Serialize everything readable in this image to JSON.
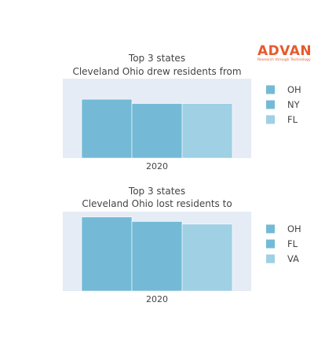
{
  "brand": {
    "name": "ADVAN",
    "tagline": "Research through Technology",
    "color": "#e65a2e"
  },
  "colors": {
    "plot_background": "#e5ecf6",
    "text": "#444444"
  },
  "chart_data": [
    {
      "type": "bar",
      "title_lines": [
        "Top 3 states",
        "Cleveland Ohio drew residents from"
      ],
      "categories": [
        "2020"
      ],
      "series": [
        {
          "name": "OH",
          "values": [
            41.5
          ],
          "color": "#74bad6"
        },
        {
          "name": "NY",
          "values": [
            38.5
          ],
          "color": "#74bad6"
        },
        {
          "name": "FL",
          "values": [
            38.5
          ],
          "color": "#9fd0e4"
        }
      ],
      "ylim": [
        0,
        56
      ],
      "legend_position": "right",
      "ylabel": "",
      "xlabel": ""
    },
    {
      "type": "bar",
      "title_lines": [
        "Top 3 states",
        "Cleveland Ohio lost residents to"
      ],
      "categories": [
        "2020"
      ],
      "series": [
        {
          "name": "OH",
          "values": [
            41.5
          ],
          "color": "#74bad6"
        },
        {
          "name": "FL",
          "values": [
            39.0
          ],
          "color": "#74bad6"
        },
        {
          "name": "VA",
          "values": [
            37.5
          ],
          "color": "#9fd0e4"
        }
      ],
      "ylim": [
        0,
        44.5
      ],
      "legend_position": "right",
      "ylabel": "",
      "xlabel": ""
    }
  ]
}
